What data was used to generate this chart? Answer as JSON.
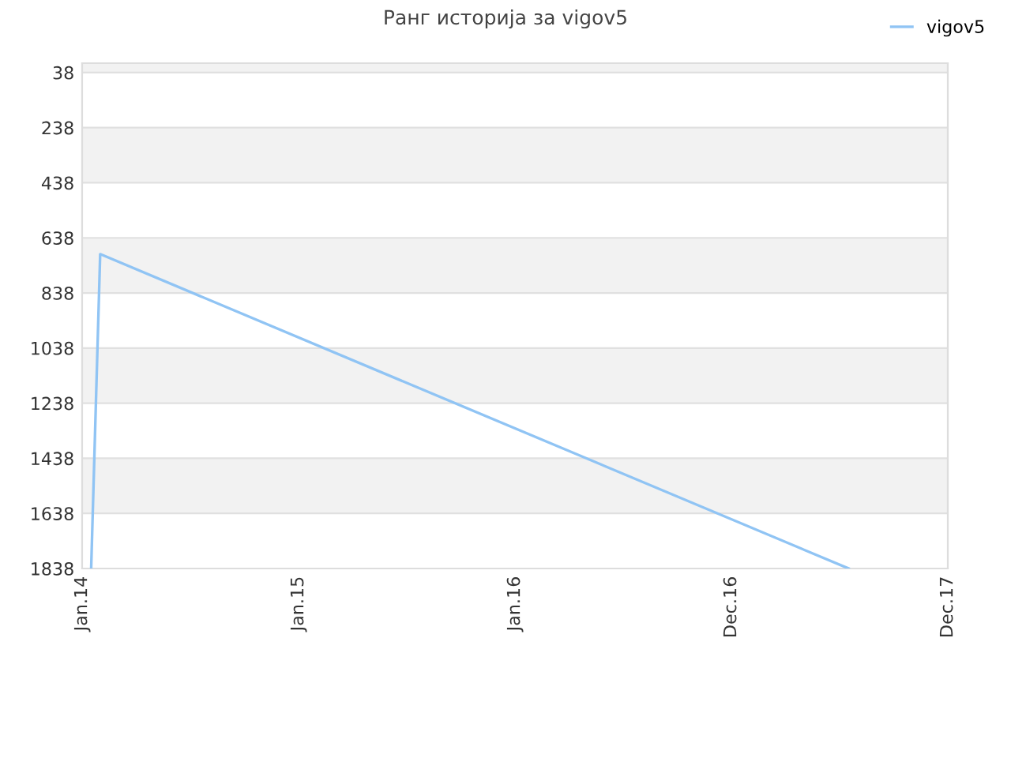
{
  "chart_data": {
    "type": "line",
    "title": "Ранг историја за vigov5",
    "categories": [
      "Jan.14",
      null,
      null,
      null,
      null,
      null,
      null,
      null,
      null,
      null,
      null,
      null,
      null,
      null,
      null,
      null,
      null,
      null,
      null,
      null,
      null,
      null,
      null,
      null,
      "Jan.15",
      null,
      null,
      null,
      null,
      null,
      null,
      null,
      null,
      null,
      null,
      null,
      null,
      null,
      null,
      null,
      null,
      null,
      null,
      null,
      null,
      null,
      null,
      null,
      "Jan.16",
      null,
      null,
      null,
      null,
      null,
      null,
      null,
      null,
      null,
      null,
      null,
      null,
      null,
      null,
      null,
      null,
      null,
      null,
      null,
      null,
      null,
      null,
      null,
      "Dec.16",
      null,
      null,
      null,
      null,
      null,
      null,
      null,
      null,
      null,
      null,
      null,
      null,
      null,
      null,
      null,
      null,
      null,
      null,
      null,
      null,
      null,
      null,
      null,
      "Dec.17"
    ],
    "series": [
      {
        "name": "vigov5",
        "color": "#90c4f4",
        "values": [
          null,
          1838,
          697,
          null,
          null,
          null,
          null,
          null,
          null,
          null,
          null,
          null,
          null,
          null,
          null,
          null,
          null,
          null,
          null,
          null,
          null,
          null,
          null,
          null,
          null,
          null,
          null,
          null,
          null,
          null,
          null,
          null,
          null,
          null,
          null,
          null,
          null,
          null,
          null,
          null,
          null,
          null,
          null,
          null,
          null,
          null,
          null,
          null,
          null,
          null,
          null,
          null,
          null,
          null,
          null,
          null,
          null,
          null,
          null,
          null,
          null,
          null,
          null,
          null,
          null,
          null,
          null,
          null,
          null,
          null,
          null,
          null,
          null,
          null,
          null,
          null,
          null,
          null,
          null,
          null,
          null,
          null,
          null,
          null,
          null,
          1838,
          null,
          null,
          null,
          null,
          null,
          null,
          null,
          null,
          null,
          null,
          null
        ]
      }
    ],
    "ylim": [
      1838,
      4
    ],
    "yticks": [
      38,
      238,
      438,
      638,
      838,
      1038,
      1238,
      1438,
      1638,
      1838
    ],
    "bands": [
      {
        "axis": "y",
        "from": 4,
        "to": 38,
        "color": "#f2f2f2"
      },
      {
        "axis": "y",
        "from": 238,
        "to": 438,
        "color": "#f2f2f2"
      },
      {
        "axis": "y",
        "from": 638,
        "to": 838,
        "color": "#f2f2f2"
      },
      {
        "axis": "y",
        "from": 1038,
        "to": 1238,
        "color": "#f2f2f2"
      },
      {
        "axis": "y",
        "from": 1438,
        "to": 1638,
        "color": "#f2f2f2"
      }
    ],
    "grid": "y",
    "legend": "top right",
    "marker": "none",
    "line_style": "solid"
  }
}
